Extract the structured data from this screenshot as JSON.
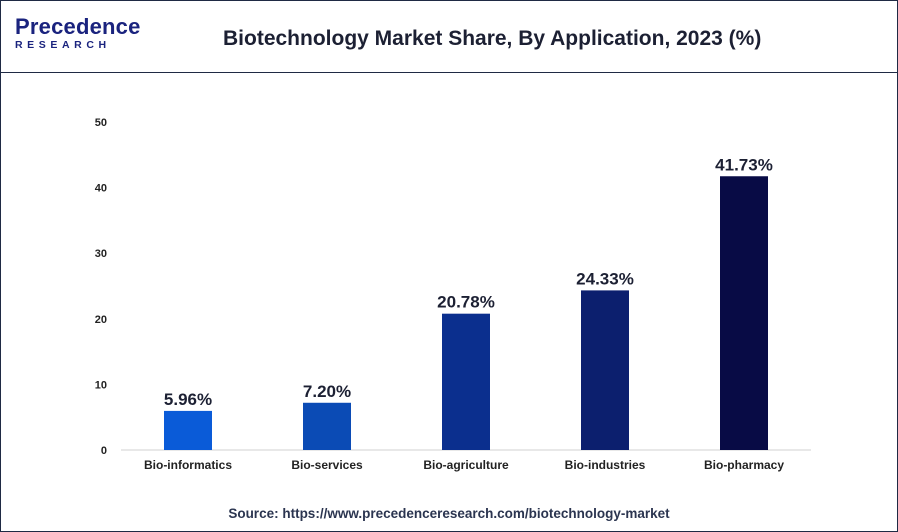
{
  "header": {
    "logo_word": "Precedence",
    "logo_sub": "RESEARCH",
    "title": "Biotechnology Market Share, By Application, 2023 (%)"
  },
  "footer": {
    "source": "Source: https://www.precedenceresearch.com/biotechnology-market"
  },
  "colors": {
    "bars": [
      "#0a5bd8",
      "#0b4bb5",
      "#0b2f8e",
      "#0c1f6e",
      "#080b45"
    ],
    "tick_text": "#222222",
    "label_text": "#1c2033"
  },
  "chart_data": {
    "type": "bar",
    "title": "Biotechnology Market Share, By Application, 2023 (%)",
    "categories": [
      "Bio-informatics",
      "Bio-services",
      "Bio-agriculture",
      "Bio-industries",
      "Bio-pharmacy"
    ],
    "values": [
      5.96,
      7.2,
      20.78,
      24.33,
      41.73
    ],
    "data_labels": [
      "5.96%",
      "7.20%",
      "20.78%",
      "24.33%",
      "41.73%"
    ],
    "xlabel": "",
    "ylabel": "",
    "ylim": [
      0,
      50
    ],
    "yticks": [
      0,
      10,
      20,
      30,
      40,
      50
    ],
    "grid": false,
    "legend": "none"
  }
}
